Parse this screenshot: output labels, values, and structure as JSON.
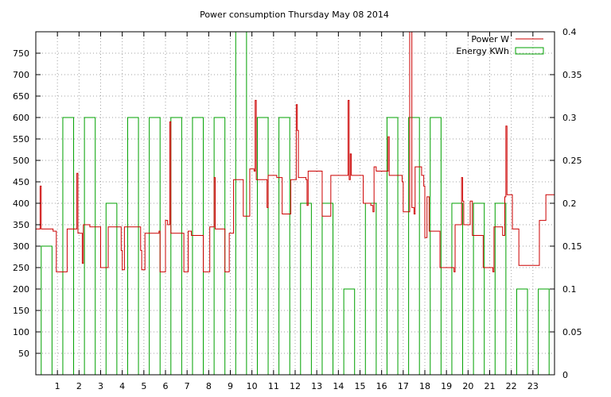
{
  "chart_data": {
    "type": "line",
    "title": "Power consumption Thursday May 08 2014",
    "xlim": [
      0,
      24
    ],
    "ylim": [
      0,
      800
    ],
    "y2lim": [
      0,
      0.4
    ],
    "x_ticks": [
      "1",
      "2",
      "3",
      "4",
      "5",
      "6",
      "7",
      "8",
      "9",
      "10",
      "11",
      "12",
      "13",
      "14",
      "15",
      "16",
      "17",
      "18",
      "19",
      "20",
      "21",
      "22",
      "23"
    ],
    "y_ticks": [
      "50",
      "100",
      "150",
      "200",
      "250",
      "300",
      "350",
      "400",
      "450",
      "500",
      "550",
      "600",
      "650",
      "700",
      "750"
    ],
    "y2_ticks": [
      "0",
      "0.05",
      "0.1",
      "0.15",
      "0.2",
      "0.25",
      "0.3",
      "0.35",
      "0.4"
    ],
    "grid": true,
    "legend_position": "top-right",
    "series": [
      {
        "name": "Power W",
        "color": "#cc0000",
        "axis": "left",
        "style": "steps",
        "points": [
          [
            0,
            340
          ],
          [
            0.2,
            440
          ],
          [
            0.25,
            340
          ],
          [
            0.7,
            340
          ],
          [
            0.8,
            335
          ],
          [
            0.95,
            240
          ],
          [
            1.35,
            240
          ],
          [
            1.45,
            340
          ],
          [
            1.8,
            340
          ],
          [
            1.9,
            470
          ],
          [
            1.95,
            330
          ],
          [
            2.05,
            330
          ],
          [
            2.15,
            260
          ],
          [
            2.2,
            350
          ],
          [
            2.5,
            345
          ],
          [
            2.95,
            345
          ],
          [
            3.0,
            250
          ],
          [
            3.3,
            250
          ],
          [
            3.35,
            345
          ],
          [
            3.9,
            345
          ],
          [
            3.95,
            290
          ],
          [
            4.0,
            245
          ],
          [
            4.1,
            345
          ],
          [
            4.8,
            345
          ],
          [
            4.85,
            290
          ],
          [
            4.9,
            245
          ],
          [
            5.05,
            330
          ],
          [
            5.5,
            330
          ],
          [
            5.7,
            335
          ],
          [
            5.75,
            240
          ],
          [
            5.95,
            240
          ],
          [
            6.0,
            360
          ],
          [
            6.1,
            350
          ],
          [
            6.2,
            590
          ],
          [
            6.25,
            330
          ],
          [
            6.7,
            330
          ],
          [
            6.8,
            330
          ],
          [
            6.85,
            240
          ],
          [
            7.0,
            240
          ],
          [
            7.05,
            335
          ],
          [
            7.2,
            325
          ],
          [
            7.7,
            325
          ],
          [
            7.75,
            240
          ],
          [
            8.0,
            240
          ],
          [
            8.05,
            345
          ],
          [
            8.2,
            345
          ],
          [
            8.25,
            460
          ],
          [
            8.3,
            340
          ],
          [
            8.65,
            340
          ],
          [
            8.75,
            240
          ],
          [
            8.9,
            240
          ],
          [
            8.95,
            330
          ],
          [
            9.1,
            330
          ],
          [
            9.15,
            455
          ],
          [
            9.5,
            455
          ],
          [
            9.6,
            370
          ],
          [
            9.85,
            370
          ],
          [
            9.9,
            480
          ],
          [
            10.1,
            475
          ],
          [
            10.15,
            640
          ],
          [
            10.2,
            455
          ],
          [
            10.6,
            455
          ],
          [
            10.7,
            390
          ],
          [
            10.75,
            465
          ],
          [
            11.1,
            465
          ],
          [
            11.15,
            460
          ],
          [
            11.3,
            460
          ],
          [
            11.4,
            375
          ],
          [
            11.75,
            375
          ],
          [
            11.8,
            455
          ],
          [
            12.0,
            455
          ],
          [
            12.05,
            630
          ],
          [
            12.1,
            570
          ],
          [
            12.15,
            460
          ],
          [
            12.5,
            455
          ],
          [
            12.55,
            395
          ],
          [
            12.6,
            475
          ],
          [
            13.1,
            475
          ],
          [
            13.2,
            475
          ],
          [
            13.25,
            370
          ],
          [
            13.6,
            370
          ],
          [
            13.65,
            465
          ],
          [
            14.4,
            465
          ],
          [
            14.45,
            640
          ],
          [
            14.5,
            455
          ],
          [
            14.55,
            515
          ],
          [
            14.6,
            465
          ],
          [
            15.1,
            465
          ],
          [
            15.15,
            400
          ],
          [
            15.5,
            395
          ],
          [
            15.6,
            380
          ],
          [
            15.65,
            485
          ],
          [
            15.75,
            475
          ],
          [
            16.2,
            475
          ],
          [
            16.3,
            555
          ],
          [
            16.35,
            465
          ],
          [
            16.9,
            465
          ],
          [
            16.95,
            450
          ],
          [
            17.0,
            380
          ],
          [
            17.25,
            380
          ],
          [
            17.3,
            800
          ],
          [
            17.4,
            390
          ],
          [
            17.5,
            375
          ],
          [
            17.55,
            485
          ],
          [
            17.8,
            485
          ],
          [
            17.85,
            465
          ],
          [
            17.95,
            440
          ],
          [
            18.0,
            320
          ],
          [
            18.1,
            415
          ],
          [
            18.2,
            335
          ],
          [
            18.65,
            335
          ],
          [
            18.7,
            250
          ],
          [
            19.3,
            250
          ],
          [
            19.35,
            240
          ],
          [
            19.4,
            350
          ],
          [
            19.6,
            350
          ],
          [
            19.7,
            460
          ],
          [
            19.75,
            405
          ],
          [
            19.8,
            350
          ],
          [
            20.0,
            350
          ],
          [
            20.1,
            405
          ],
          [
            20.2,
            325
          ],
          [
            20.6,
            325
          ],
          [
            20.7,
            250
          ],
          [
            21.1,
            250
          ],
          [
            21.15,
            240
          ],
          [
            21.2,
            345
          ],
          [
            21.5,
            345
          ],
          [
            21.6,
            325
          ],
          [
            21.7,
            415
          ],
          [
            21.75,
            580
          ],
          [
            21.8,
            420
          ],
          [
            22.0,
            420
          ],
          [
            22.05,
            340
          ],
          [
            22.3,
            340
          ],
          [
            22.35,
            255
          ],
          [
            23.25,
            255
          ],
          [
            23.3,
            360
          ],
          [
            23.55,
            360
          ],
          [
            23.6,
            420
          ],
          [
            24.0,
            420
          ]
        ]
      },
      {
        "name": "Energy KWh",
        "color": "#00a000",
        "axis": "right",
        "style": "boxes",
        "values": [
          0.15,
          0.3,
          0.3,
          0.2,
          0.3,
          0.3,
          0.3,
          0.3,
          0.3,
          0.4,
          0.3,
          0.3,
          0.2,
          0.2,
          0.1,
          0.2,
          0.3,
          0.3,
          0.3,
          0.2,
          0.2,
          0.2,
          0.1,
          0.1
        ]
      }
    ]
  }
}
